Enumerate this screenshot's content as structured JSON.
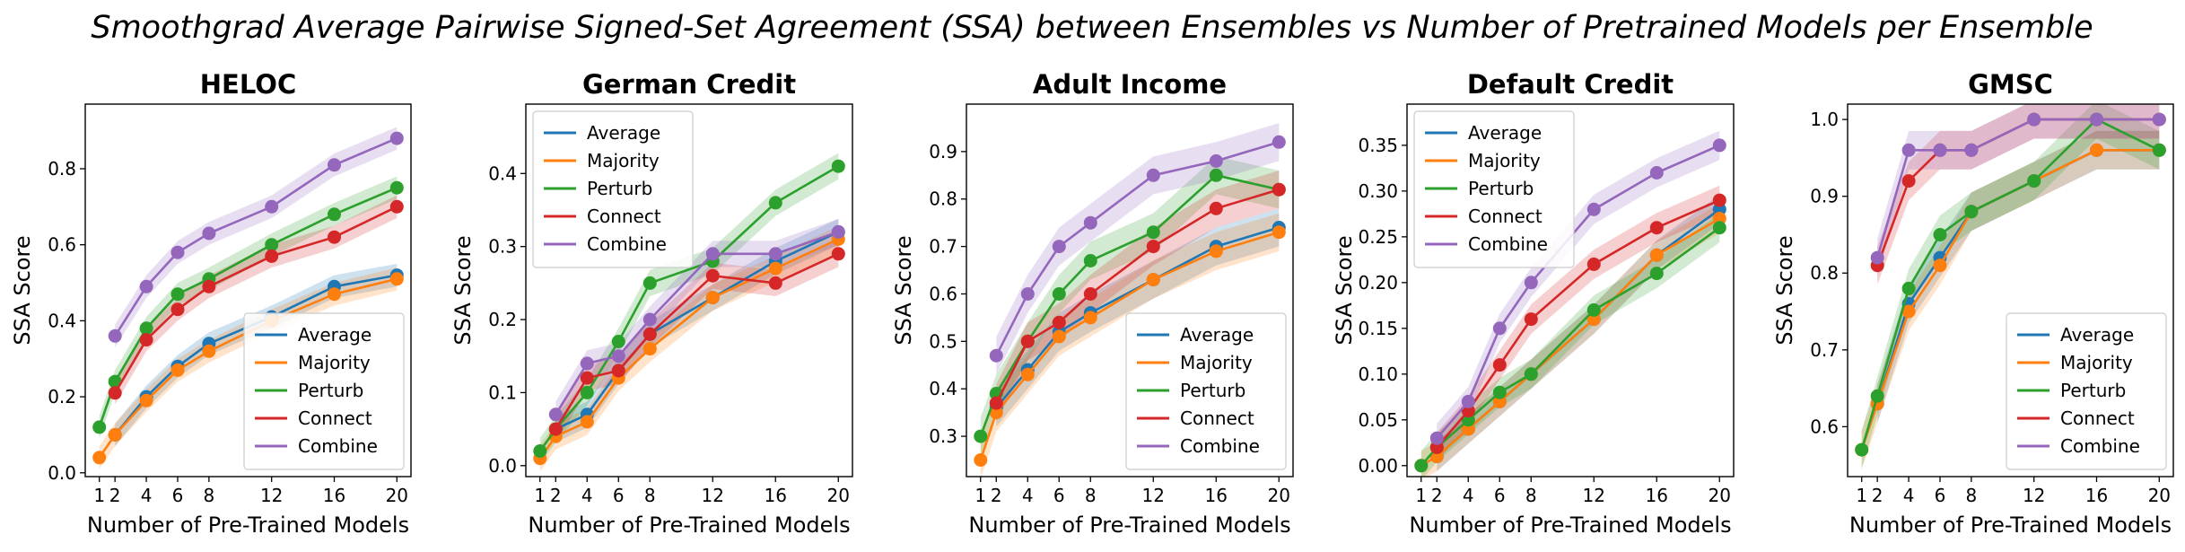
{
  "figure": {
    "suptitle": "Smoothgrad Average Pairwise Signed-Set Agreement (SSA) between Ensembles vs Number of Pretrained Models per Ensemble"
  },
  "colors": {
    "Average": "#1f77b4",
    "Majority": "#ff7f0e",
    "Perturb": "#2ca02c",
    "Connect": "#d62728",
    "Combine": "#9467bd"
  },
  "chart_data": [
    {
      "type": "line",
      "title": "HELOC",
      "xlabel": "Number of Pre-Trained Models",
      "ylabel": "SSA Score",
      "x": [
        1,
        2,
        4,
        6,
        8,
        12,
        16,
        20
      ],
      "xticks": [
        1,
        2,
        4,
        6,
        8,
        12,
        16,
        20
      ],
      "xlim": [
        0.1,
        20.9
      ],
      "ylim": [
        -0.01,
        0.97
      ],
      "yticks": [
        0.0,
        0.2,
        0.4,
        0.6,
        0.8
      ],
      "legend": "lower-right",
      "band": 0.03,
      "series": [
        {
          "name": "Average",
          "values": [
            null,
            0.1,
            0.2,
            0.28,
            0.34,
            0.41,
            0.49,
            0.52
          ]
        },
        {
          "name": "Majority",
          "values": [
            0.04,
            0.1,
            0.19,
            0.27,
            0.32,
            0.4,
            0.47,
            0.51
          ]
        },
        {
          "name": "Perturb",
          "values": [
            0.12,
            0.24,
            0.38,
            0.47,
            0.51,
            0.6,
            0.68,
            0.75
          ]
        },
        {
          "name": "Connect",
          "values": [
            null,
            0.21,
            0.35,
            0.43,
            0.49,
            0.57,
            0.62,
            0.7
          ]
        },
        {
          "name": "Combine",
          "values": [
            null,
            0.36,
            0.49,
            0.58,
            0.63,
            0.7,
            0.81,
            0.88
          ]
        }
      ]
    },
    {
      "type": "line",
      "title": "German Credit",
      "xlabel": "Number of Pre-Trained Models",
      "ylabel": "SSA Score",
      "x": [
        1,
        2,
        4,
        6,
        8,
        12,
        16,
        20
      ],
      "xticks": [
        1,
        2,
        4,
        6,
        8,
        12,
        16,
        20
      ],
      "xlim": [
        0.1,
        20.9
      ],
      "ylim": [
        -0.015,
        0.495
      ],
      "yticks": [
        0.0,
        0.1,
        0.2,
        0.3,
        0.4
      ],
      "legend": "upper-left",
      "band": 0.018,
      "series": [
        {
          "name": "Average",
          "values": [
            null,
            0.05,
            0.07,
            0.13,
            0.18,
            0.23,
            0.28,
            0.32
          ]
        },
        {
          "name": "Majority",
          "values": [
            0.01,
            0.04,
            0.06,
            0.12,
            0.16,
            0.23,
            0.27,
            0.31
          ]
        },
        {
          "name": "Perturb",
          "values": [
            0.02,
            0.05,
            0.1,
            0.17,
            0.25,
            0.28,
            0.36,
            0.41
          ]
        },
        {
          "name": "Connect",
          "values": [
            null,
            0.05,
            0.12,
            0.13,
            0.18,
            0.26,
            0.25,
            0.29
          ]
        },
        {
          "name": "Combine",
          "values": [
            null,
            0.07,
            0.14,
            0.15,
            0.2,
            0.29,
            0.29,
            0.32
          ]
        }
      ]
    },
    {
      "type": "line",
      "title": "Adult Income",
      "xlabel": "Number of Pre-Trained Models",
      "ylabel": "SSA Score",
      "x": [
        1,
        2,
        4,
        6,
        8,
        12,
        16,
        20
      ],
      "xticks": [
        1,
        2,
        4,
        6,
        8,
        12,
        16,
        20
      ],
      "xlim": [
        0.1,
        20.9
      ],
      "ylim": [
        0.215,
        1.0
      ],
      "yticks": [
        0.3,
        0.4,
        0.5,
        0.6,
        0.7,
        0.8,
        0.9
      ],
      "legend": "lower-right",
      "band": 0.04,
      "series": [
        {
          "name": "Average",
          "values": [
            null,
            0.36,
            0.44,
            0.52,
            0.56,
            0.63,
            0.7,
            0.74
          ]
        },
        {
          "name": "Majority",
          "values": [
            0.25,
            0.35,
            0.43,
            0.51,
            0.55,
            0.63,
            0.69,
            0.73
          ]
        },
        {
          "name": "Perturb",
          "values": [
            0.3,
            0.39,
            0.5,
            0.6,
            0.67,
            0.73,
            0.85,
            0.82
          ]
        },
        {
          "name": "Connect",
          "values": [
            null,
            0.37,
            0.5,
            0.54,
            0.6,
            0.7,
            0.78,
            0.82
          ]
        },
        {
          "name": "Combine",
          "values": [
            null,
            0.47,
            0.6,
            0.7,
            0.75,
            0.85,
            0.88,
            0.92
          ]
        }
      ]
    },
    {
      "type": "line",
      "title": "Default Credit",
      "xlabel": "Number of Pre-Trained Models",
      "ylabel": "SSA Score",
      "x": [
        1,
        2,
        4,
        6,
        8,
        12,
        16,
        20
      ],
      "xticks": [
        1,
        2,
        4,
        6,
        8,
        12,
        16,
        20
      ],
      "xlim": [
        0.1,
        20.9
      ],
      "ylim": [
        -0.012,
        0.395
      ],
      "yticks": [
        0.0,
        0.05,
        0.1,
        0.15,
        0.2,
        0.25,
        0.3,
        0.35
      ],
      "ytick_labels": [
        "0.00",
        "0.05",
        "0.10",
        "0.15",
        "0.20",
        "0.25",
        "0.30",
        "0.35"
      ],
      "legend": "upper-left",
      "band": 0.016,
      "series": [
        {
          "name": "Average",
          "values": [
            null,
            0.01,
            0.04,
            0.07,
            0.1,
            0.16,
            0.23,
            0.28
          ]
        },
        {
          "name": "Majority",
          "values": [
            0.0,
            0.01,
            0.04,
            0.07,
            0.1,
            0.16,
            0.23,
            0.27
          ]
        },
        {
          "name": "Perturb",
          "values": [
            0.0,
            0.02,
            0.05,
            0.08,
            0.1,
            0.17,
            0.21,
            0.26
          ]
        },
        {
          "name": "Connect",
          "values": [
            null,
            0.02,
            0.06,
            0.11,
            0.16,
            0.22,
            0.26,
            0.29
          ]
        },
        {
          "name": "Combine",
          "values": [
            null,
            0.03,
            0.07,
            0.15,
            0.2,
            0.28,
            0.32,
            0.35
          ]
        }
      ]
    },
    {
      "type": "line",
      "title": "GMSC",
      "xlabel": "Number of Pre-Trained Models",
      "ylabel": "SSA Score",
      "x": [
        1,
        2,
        4,
        6,
        8,
        12,
        16,
        20
      ],
      "xticks": [
        1,
        2,
        4,
        6,
        8,
        12,
        16,
        20
      ],
      "xlim": [
        0.1,
        20.9
      ],
      "ylim": [
        0.535,
        1.02
      ],
      "yticks": [
        0.6,
        0.7,
        0.8,
        0.9,
        1.0
      ],
      "legend": "lower-right",
      "band": 0.025,
      "series": [
        {
          "name": "Average",
          "values": [
            null,
            0.63,
            0.76,
            0.82,
            0.88,
            0.92,
            0.96,
            0.96
          ]
        },
        {
          "name": "Majority",
          "values": [
            0.57,
            0.63,
            0.75,
            0.81,
            0.88,
            0.92,
            0.96,
            0.96
          ]
        },
        {
          "name": "Perturb",
          "values": [
            0.57,
            0.64,
            0.78,
            0.85,
            0.88,
            0.92,
            1.0,
            0.96
          ]
        },
        {
          "name": "Connect",
          "values": [
            null,
            0.81,
            0.92,
            0.96,
            0.96,
            1.0,
            1.0,
            1.0
          ]
        },
        {
          "name": "Combine",
          "values": [
            null,
            0.82,
            0.96,
            0.96,
            0.96,
            1.0,
            1.0,
            1.0
          ]
        }
      ]
    }
  ]
}
